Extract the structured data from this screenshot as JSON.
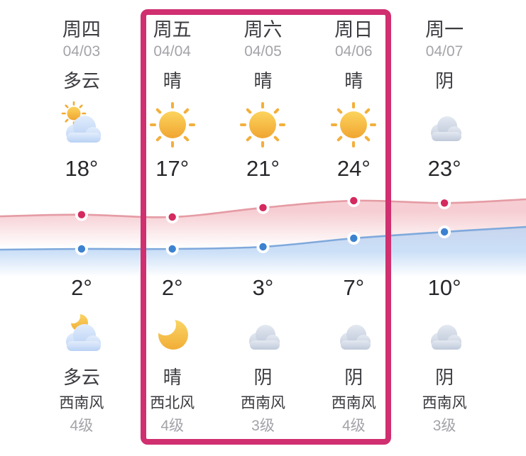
{
  "columns": [
    {
      "day": "周四",
      "date": "04/03",
      "day_condition": "多云",
      "day_icon": "sun-behind-cloud-icon",
      "high": "18°",
      "low": "2°",
      "night_icon": "moon-behind-cloud-icon",
      "night_condition": "多云",
      "wind": "西南风",
      "wind_level": "4级"
    },
    {
      "day": "周五",
      "date": "04/04",
      "day_condition": "晴",
      "day_icon": "sun-icon",
      "high": "17°",
      "low": "2°",
      "night_icon": "moon-icon",
      "night_condition": "晴",
      "wind": "西北风",
      "wind_level": "4级"
    },
    {
      "day": "周六",
      "date": "04/05",
      "day_condition": "晴",
      "day_icon": "sun-icon",
      "high": "21°",
      "low": "3°",
      "night_icon": "cloud-icon",
      "night_condition": "阴",
      "wind": "西南风",
      "wind_level": "3级"
    },
    {
      "day": "周日",
      "date": "04/06",
      "day_condition": "晴",
      "day_icon": "sun-icon",
      "high": "24°",
      "low": "7°",
      "night_icon": "cloud-icon",
      "night_condition": "阴",
      "wind": "西南风",
      "wind_level": "4级"
    },
    {
      "day": "周一",
      "date": "04/07",
      "day_condition": "阴",
      "day_icon": "cloud-icon",
      "high": "23°",
      "low": "10°",
      "night_icon": "cloud-icon",
      "night_condition": "阴",
      "wind": "西南风",
      "wind_level": "3级"
    }
  ],
  "highlight": {
    "framed_days": [
      "周五",
      "周六",
      "周日"
    ],
    "border_color": "#d02f70"
  },
  "chart_data": {
    "type": "line",
    "categories": [
      "周四",
      "周五",
      "周六",
      "周日",
      "周一"
    ],
    "series": [
      {
        "name": "high",
        "values": [
          18,
          17,
          21,
          24,
          23
        ],
        "line_color": "#e59ba4",
        "dot_color": "#d42a5f",
        "fill_color": "rgba(238,164,173,0.55)"
      },
      {
        "name": "low",
        "values": [
          2,
          2,
          3,
          7,
          10
        ],
        "line_color": "#7fa9dc",
        "dot_color": "#3d82d0",
        "fill_color": "rgba(168,202,242,0.6)"
      }
    ],
    "unit": "°C",
    "grid": false,
    "legend_position": "none",
    "axis_labels_visible": false
  }
}
